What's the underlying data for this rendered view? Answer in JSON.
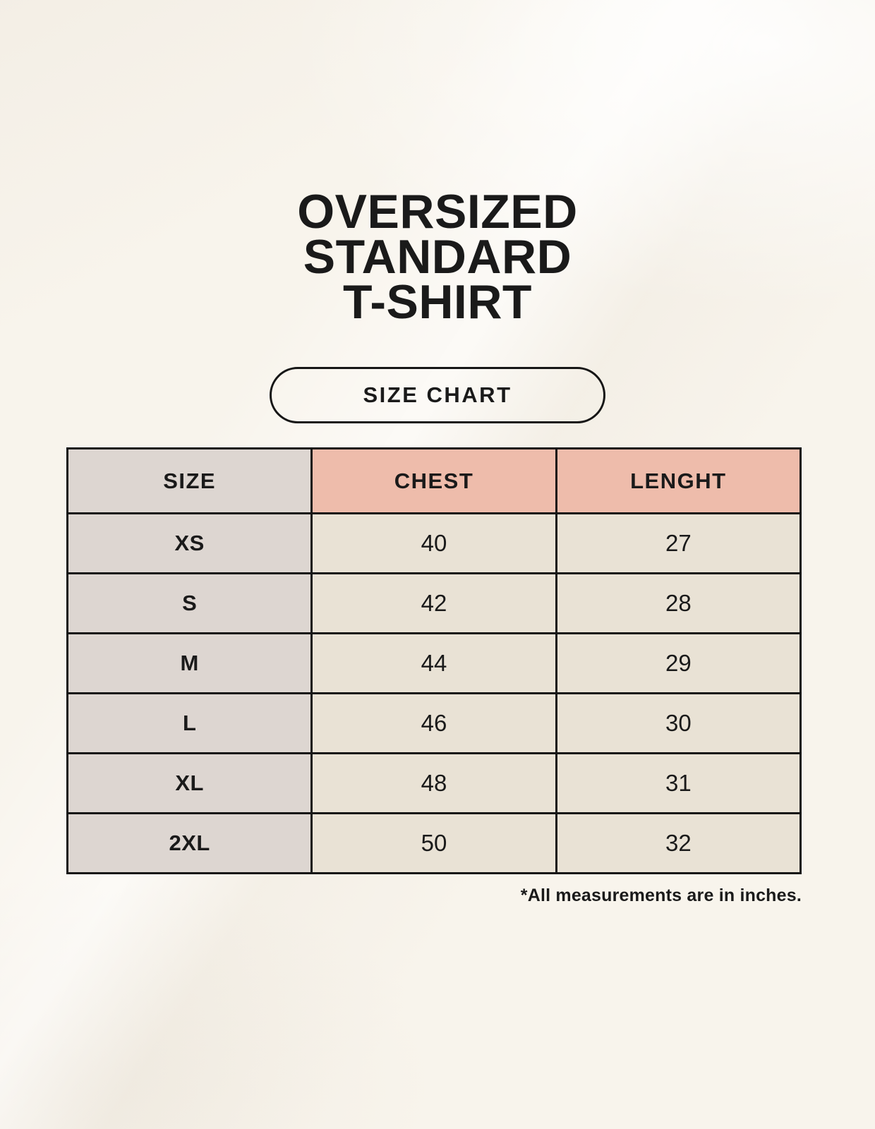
{
  "page": {
    "title_lines": [
      "OVERSIZED",
      "STANDARD",
      "T-SHIRT"
    ],
    "badge_label": "SIZE CHART",
    "footnote": "*All measurements are in inches."
  },
  "colors": {
    "background": "#f8f4ec",
    "accent_header": "#eebcab",
    "neutral_header": "#ddd6d1",
    "row_label_bg": "#ddd6d1",
    "cell_bg": "#e9e2d5",
    "border": "#161616",
    "text": "#1a1a1a"
  },
  "chart_data": {
    "type": "table",
    "title": "Oversized Standard T-Shirt Size Chart",
    "columns": [
      "SIZE",
      "CHEST",
      "LENGHT"
    ],
    "rows": [
      [
        "XS",
        "40",
        "27"
      ],
      [
        "S",
        "42",
        "28"
      ],
      [
        "M",
        "44",
        "29"
      ],
      [
        "L",
        "46",
        "30"
      ],
      [
        "XL",
        "48",
        "31"
      ],
      [
        "2XL",
        "50",
        "32"
      ]
    ],
    "units": "inches",
    "note": "*All measurements are in inches."
  }
}
